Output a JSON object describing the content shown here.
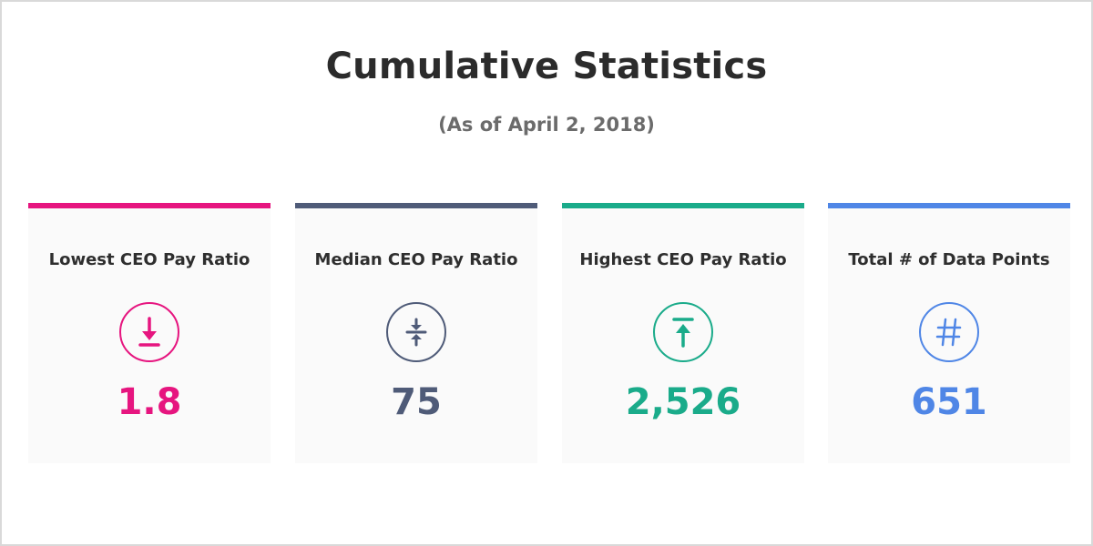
{
  "header": {
    "title": "Cumulative Statistics",
    "subtitle": "(As of April 2, 2018)"
  },
  "cards": [
    {
      "label": "Lowest CEO Pay Ratio",
      "value": "1.8",
      "icon": "arrow-down-to-line-icon",
      "color": "#e6157f"
    },
    {
      "label": "Median CEO Pay Ratio",
      "value": "75",
      "icon": "compress-vertical-icon",
      "color": "#4f5b78"
    },
    {
      "label": "Highest CEO Pay Ratio",
      "value": "2,526",
      "icon": "arrow-up-from-line-icon",
      "color": "#1aab8a"
    },
    {
      "label": "Total # of Data Points",
      "value": "651",
      "icon": "hash-icon",
      "color": "#4f86e6"
    }
  ]
}
